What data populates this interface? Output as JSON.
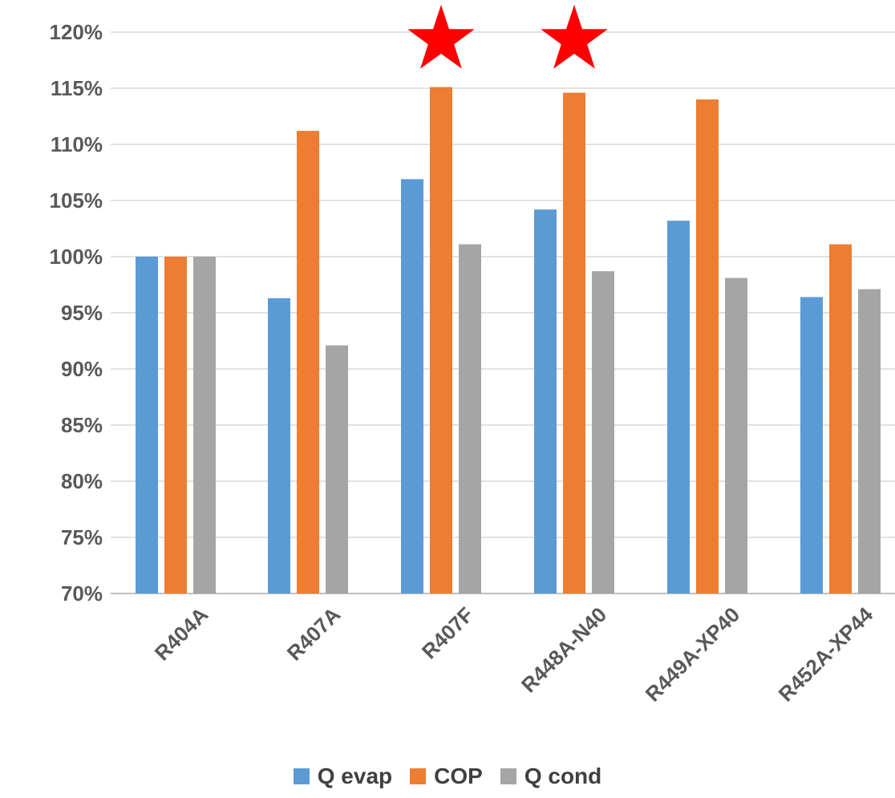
{
  "chart_data": {
    "type": "bar",
    "categories": [
      "R404A",
      "R407A",
      "R407F",
      "R448A-N40",
      "R449A-XP40",
      "R452A-XP44"
    ],
    "series": [
      {
        "name": "Q evap",
        "color": "#5b9bd5",
        "values": [
          100.0,
          96.3,
          106.9,
          104.2,
          103.2,
          96.4
        ]
      },
      {
        "name": "COP",
        "color": "#ed7d31",
        "values": [
          100.0,
          111.2,
          115.1,
          114.6,
          114.0,
          101.1
        ]
      },
      {
        "name": "Q cond",
        "color": "#a5a5a5",
        "values": [
          100.0,
          92.1,
          101.1,
          98.7,
          98.1,
          97.1
        ]
      }
    ],
    "ylim": [
      70,
      120
    ],
    "yticks": [
      "70%",
      "75%",
      "80%",
      "85%",
      "90%",
      "95%",
      "100%",
      "105%",
      "110%",
      "115%",
      "120%"
    ],
    "grid": true,
    "legend_position": "bottom",
    "annotations": [
      {
        "type": "star",
        "color": "#ff0000",
        "category": "R407F"
      },
      {
        "type": "star",
        "color": "#ff0000",
        "category": "R448A-N40"
      }
    ]
  }
}
